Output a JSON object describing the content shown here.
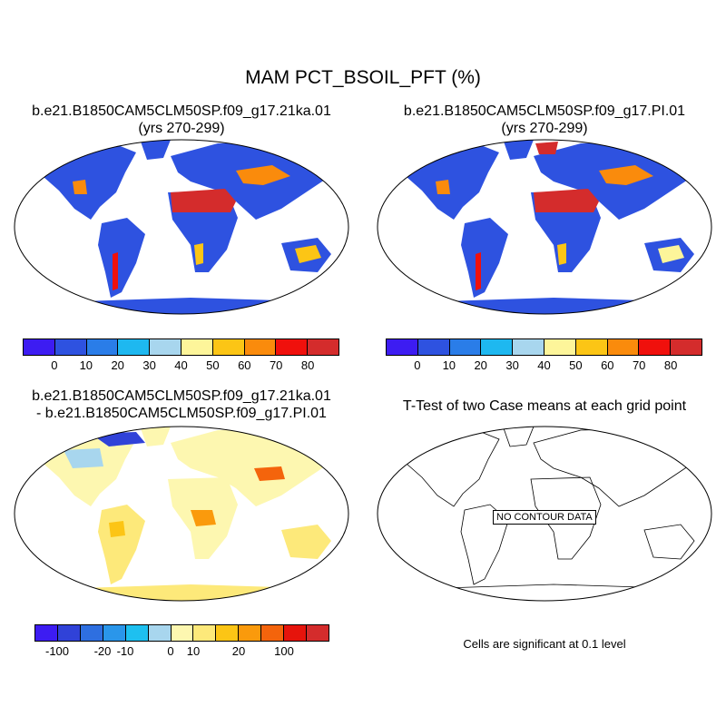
{
  "page": {
    "title": "MAM PCT_BSOIL_PFT (%)"
  },
  "panels": [
    {
      "line1": "b.e21.B1850CAM5CLM50SP.f09_g17.21ka.01",
      "line2": "(yrs 270-299)",
      "colorbar": {
        "colors": [
          "#3d1cf2",
          "#2e52e0",
          "#2a7de8",
          "#1eb8f0",
          "#a8d6ee",
          "#fdf59a",
          "#fcc515",
          "#fa8b0c",
          "#f0100c",
          "#d42c2c"
        ],
        "ticks": [
          "0",
          "10",
          "20",
          "30",
          "40",
          "50",
          "60",
          "70",
          "80"
        ]
      }
    },
    {
      "line1": "b.e21.B1850CAM5CLM50SP.f09_g17.PI.01",
      "line2": "(yrs 270-299)",
      "colorbar": {
        "colors": [
          "#3d1cf2",
          "#2e52e0",
          "#2a7de8",
          "#1eb8f0",
          "#a8d6ee",
          "#fdf59a",
          "#fcc515",
          "#fa8b0c",
          "#f0100c",
          "#d42c2c"
        ],
        "ticks": [
          "0",
          "10",
          "20",
          "30",
          "40",
          "50",
          "60",
          "70",
          "80"
        ]
      }
    },
    {
      "line1": "b.e21.B1850CAM5CLM50SP.f09_g17.21ka.01",
      "line2": "- b.e21.B1850CAM5CLM50SP.f09_g17.PI.01",
      "colorbar": {
        "colors": [
          "#3d1cf2",
          "#3042d8",
          "#2e6fe0",
          "#2a96ea",
          "#1ec0f0",
          "#a8d6ee",
          "#fdf7b0",
          "#fde97a",
          "#fcc515",
          "#fa9a0c",
          "#f4640c",
          "#e6140c",
          "#d42c2c"
        ],
        "ticks": [
          "-100",
          "-20",
          "-10",
          "0",
          "10",
          "20",
          "100"
        ]
      }
    },
    {
      "line1": "T-Test of two Case means at each grid point",
      "nodata": "NO CONTOUR DATA",
      "note": "Cells are significant at 0.1 level"
    }
  ]
}
